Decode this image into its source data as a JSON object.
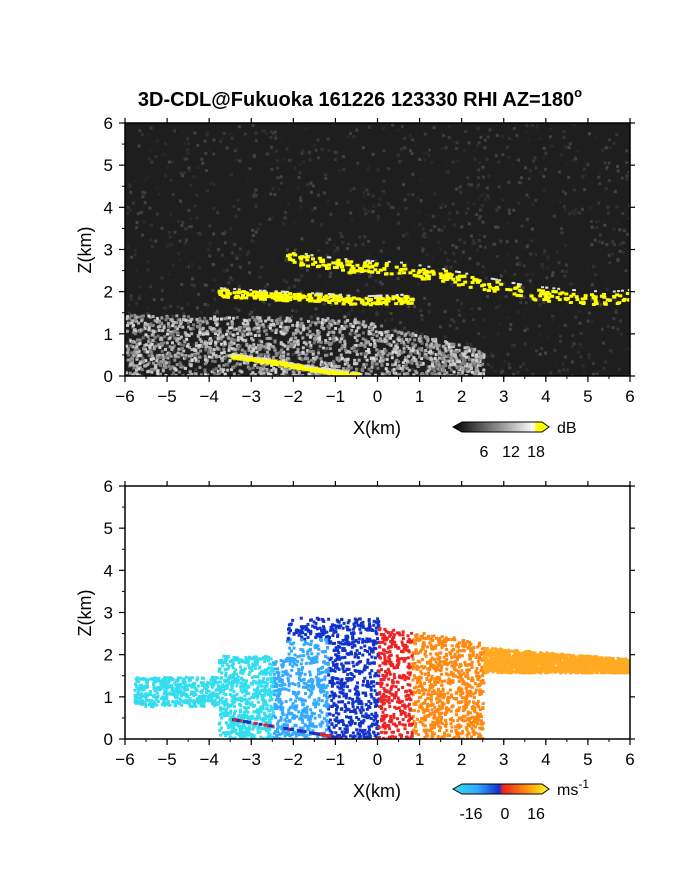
{
  "title_main": "3D-CDL@Fukuoka 161226 123330 RHI AZ=180",
  "title_deg": "o",
  "chart_data": [
    {
      "type": "heatmap",
      "subtitle": "",
      "xlabel": "X(km)",
      "ylabel": "Z(km)",
      "xlim": [
        -6,
        6
      ],
      "ylim": [
        0,
        6
      ],
      "xticks": [
        "-6",
        "-5",
        "-4",
        "-3",
        "-2",
        "-1",
        "0",
        "1",
        "2",
        "3",
        "4",
        "5",
        "6"
      ],
      "yticks": [
        "0",
        "1",
        "2",
        "3",
        "4",
        "5",
        "6"
      ],
      "colorbar": {
        "unit": "dB",
        "ticks": [
          "6",
          "12",
          "18"
        ],
        "range": [
          0,
          20
        ]
      },
      "colors": {
        "background": "#1e1e1e",
        "noise": "#2e2e2e",
        "echo": "#b9b9b9",
        "strong": "#ffff00"
      },
      "features": [
        {
          "name": "upper layer",
          "x": [
            -2.2,
            -1.5,
            -0.5,
            0.5,
            1.5,
            2.5,
            3.5,
            4.5,
            5.5,
            6.0
          ],
          "z": [
            2.85,
            2.7,
            2.6,
            2.55,
            2.4,
            2.2,
            2.0,
            1.9,
            1.85,
            1.9
          ],
          "value_dB": 18
        },
        {
          "name": "lower layer",
          "x": [
            -3.8,
            -3.0,
            -2.0,
            -1.0,
            -0.5,
            0.8
          ],
          "z": [
            2.0,
            1.95,
            1.9,
            1.85,
            1.8,
            1.85
          ],
          "value_dB": 18
        },
        {
          "name": "near-ground band",
          "x": [
            -3.5,
            -2.5,
            -1.5,
            -0.5
          ],
          "z": [
            0.5,
            0.35,
            0.18,
            0.05
          ],
          "value_dB": 18
        }
      ]
    },
    {
      "type": "heatmap",
      "subtitle": "",
      "xlabel": "X(km)",
      "ylabel": "Z(km)",
      "xlim": [
        -6,
        6
      ],
      "ylim": [
        0,
        6
      ],
      "xticks": [
        "-6",
        "-5",
        "-4",
        "-3",
        "-2",
        "-1",
        "0",
        "1",
        "2",
        "3",
        "4",
        "5",
        "6"
      ],
      "yticks": [
        "0",
        "1",
        "2",
        "3",
        "4",
        "5",
        "6"
      ],
      "colorbar": {
        "unit": "ms",
        "unit_exp": "-1",
        "ticks": [
          "-16",
          "0",
          "16"
        ],
        "range": [
          -20,
          20
        ]
      },
      "colors": {
        "neg_far": "#33ddee",
        "neg_mid": "#33aaff",
        "neg_near": "#1133cc",
        "pos_near": "#ee2222",
        "pos_mid": "#ff8811",
        "pos_far": "#ffaa22"
      },
      "features": [
        {
          "name": "approaching (negative) region",
          "x_range": [
            -5.8,
            0
          ],
          "z_range": [
            0,
            3.0
          ],
          "velocity_ms": -14
        },
        {
          "name": "receding (positive) region",
          "x_range": [
            0,
            6.0
          ],
          "z_range": [
            0,
            2.7
          ],
          "velocity_ms": 14
        }
      ]
    }
  ]
}
